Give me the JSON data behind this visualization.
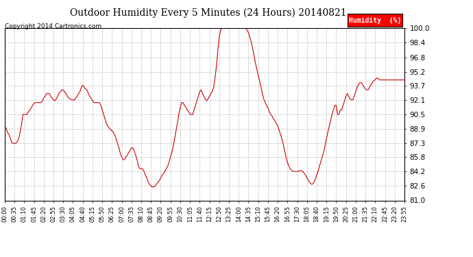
{
  "title": "Outdoor Humidity Every 5 Minutes (24 Hours) 20140821",
  "copyright": "Copyright 2014 Cartronics.com",
  "legend_label": "Humidity  (%)",
  "line_color": "#cc0000",
  "background_color": "#ffffff",
  "grid_color": "#bbbbbb",
  "ylim": [
    81.0,
    100.0
  ],
  "yticks": [
    81.0,
    82.6,
    84.2,
    85.8,
    87.3,
    88.9,
    90.5,
    92.1,
    93.7,
    95.2,
    96.8,
    98.4,
    100.0
  ],
  "humidity_data": [
    89.0,
    89.0,
    88.5,
    88.3,
    87.9,
    87.4,
    87.3,
    87.3,
    87.3,
    87.5,
    87.8,
    88.5,
    89.3,
    90.5,
    90.5,
    90.5,
    90.5,
    90.8,
    91.0,
    91.2,
    91.5,
    91.7,
    91.8,
    91.8,
    91.8,
    91.8,
    91.8,
    92.0,
    92.3,
    92.5,
    92.8,
    92.8,
    92.8,
    92.5,
    92.3,
    92.1,
    92.0,
    92.2,
    92.5,
    92.8,
    93.0,
    93.2,
    93.2,
    93.0,
    92.8,
    92.5,
    92.3,
    92.2,
    92.1,
    92.1,
    92.1,
    92.3,
    92.5,
    92.8,
    93.0,
    93.5,
    93.7,
    93.5,
    93.3,
    93.2,
    92.8,
    92.5,
    92.3,
    92.0,
    91.8,
    91.8,
    91.8,
    91.8,
    91.8,
    91.5,
    91.0,
    90.5,
    90.0,
    89.5,
    89.2,
    89.0,
    88.8,
    88.7,
    88.5,
    88.2,
    87.8,
    87.3,
    86.8,
    86.2,
    85.8,
    85.5,
    85.5,
    85.8,
    86.0,
    86.3,
    86.5,
    86.8,
    86.8,
    86.5,
    86.0,
    85.5,
    84.8,
    84.5,
    84.5,
    84.5,
    84.2,
    83.8,
    83.5,
    83.0,
    82.8,
    82.6,
    82.5,
    82.5,
    82.6,
    82.8,
    83.0,
    83.2,
    83.5,
    83.8,
    84.0,
    84.2,
    84.5,
    84.8,
    85.2,
    85.8,
    86.3,
    87.0,
    87.8,
    88.7,
    89.5,
    90.5,
    91.2,
    91.8,
    91.8,
    91.5,
    91.3,
    91.0,
    90.8,
    90.5,
    90.5,
    90.5,
    91.0,
    91.5,
    92.0,
    92.5,
    93.0,
    93.2,
    92.8,
    92.5,
    92.2,
    92.0,
    92.2,
    92.5,
    92.8,
    93.0,
    93.5,
    94.5,
    95.8,
    97.5,
    99.0,
    99.8,
    100.0,
    100.0,
    100.0,
    100.0,
    100.0,
    100.0,
    100.0,
    100.0,
    100.0,
    100.0,
    100.0,
    100.0,
    100.0,
    100.0,
    100.0,
    100.0,
    100.0,
    100.0,
    99.8,
    99.5,
    99.0,
    98.5,
    97.8,
    97.0,
    96.2,
    95.5,
    94.8,
    94.2,
    93.5,
    92.8,
    92.2,
    91.8,
    91.5,
    91.2,
    90.8,
    90.5,
    90.3,
    90.0,
    89.8,
    89.5,
    89.2,
    88.8,
    88.3,
    87.8,
    87.2,
    86.5,
    85.8,
    85.2,
    84.8,
    84.5,
    84.3,
    84.2,
    84.2,
    84.2,
    84.2,
    84.2,
    84.3,
    84.3,
    84.2,
    84.0,
    83.8,
    83.5,
    83.2,
    83.0,
    82.8,
    82.8,
    83.0,
    83.3,
    83.8,
    84.2,
    84.8,
    85.3,
    85.8,
    86.3,
    87.0,
    87.8,
    88.5,
    89.2,
    89.8,
    90.5,
    91.0,
    91.5,
    91.5,
    90.5,
    90.5,
    91.0,
    91.0,
    91.5,
    92.0,
    92.5,
    92.8,
    92.5,
    92.2,
    92.1,
    92.1,
    92.5,
    93.0,
    93.5,
    93.8,
    94.0,
    94.0,
    93.8,
    93.5,
    93.3,
    93.2,
    93.2,
    93.5,
    93.8,
    94.0,
    94.2,
    94.3,
    94.5,
    94.5,
    94.3
  ],
  "tick_step": 7,
  "step_minutes": 5,
  "num_steps": 288
}
